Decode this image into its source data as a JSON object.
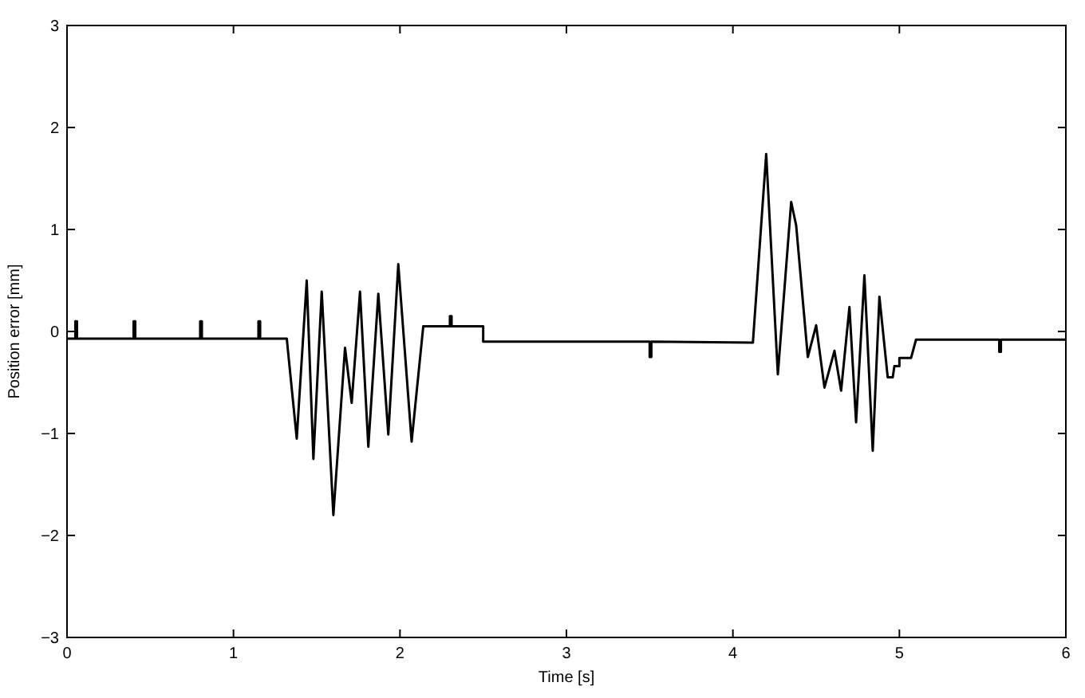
{
  "chart_data": {
    "type": "line",
    "xlabel": "Time [s]",
    "ylabel": "Position error [mm]",
    "xlim": [
      0,
      6
    ],
    "ylim": [
      -3,
      3
    ],
    "xticks": [
      0,
      1,
      2,
      3,
      4,
      5,
      6
    ],
    "yticks": [
      {
        "value": -3,
        "label": "−3"
      },
      {
        "value": -2,
        "label": "−2"
      },
      {
        "value": -1,
        "label": "−1"
      },
      0,
      1,
      2,
      3
    ],
    "grid": false,
    "line_style": "solid",
    "marker": "none",
    "series": [
      {
        "color": "#000000",
        "x": [
          0,
          0.05,
          0.05,
          0.06,
          0.06,
          0.4,
          0.4,
          0.41,
          0.41,
          0.8,
          0.8,
          0.81,
          0.81,
          1.15,
          1.15,
          1.16,
          1.16,
          1.32,
          1.38,
          1.44,
          1.48,
          1.53,
          1.6,
          1.67,
          1.71,
          1.76,
          1.81,
          1.87,
          1.93,
          1.99,
          2.07,
          2.14,
          2.3,
          2.3,
          2.31,
          2.31,
          2.5,
          2.5,
          3.5,
          3.5,
          3.51,
          3.51,
          4.12,
          4.2,
          4.27,
          4.35,
          4.38,
          4.45,
          4.5,
          4.55,
          4.61,
          4.65,
          4.7,
          4.74,
          4.79,
          4.84,
          4.88,
          4.93,
          4.96,
          4.97,
          5.0,
          5.0,
          5.07,
          5.1,
          5.6,
          5.6,
          5.61,
          5.61,
          6
        ],
        "values": [
          -0.07,
          -0.07,
          0.1,
          0.1,
          -0.07,
          -0.07,
          0.1,
          0.1,
          -0.07,
          -0.07,
          0.1,
          0.1,
          -0.07,
          -0.07,
          0.1,
          0.1,
          -0.07,
          -0.07,
          -1.05,
          0.5,
          -1.25,
          0.39,
          -1.8,
          -0.16,
          -0.7,
          0.39,
          -1.13,
          0.37,
          -1.01,
          0.66,
          -1.08,
          0.05,
          0.05,
          0.15,
          0.15,
          0.05,
          0.05,
          -0.1,
          -0.1,
          -0.25,
          -0.25,
          -0.1,
          -0.11,
          1.74,
          -0.42,
          1.27,
          1.04,
          -0.25,
          0.06,
          -0.55,
          -0.19,
          -0.58,
          0.24,
          -0.89,
          0.55,
          -1.17,
          0.34,
          -0.45,
          -0.45,
          -0.34,
          -0.34,
          -0.26,
          -0.26,
          -0.08,
          -0.08,
          -0.2,
          -0.2,
          -0.08,
          -0.08
        ]
      }
    ]
  }
}
